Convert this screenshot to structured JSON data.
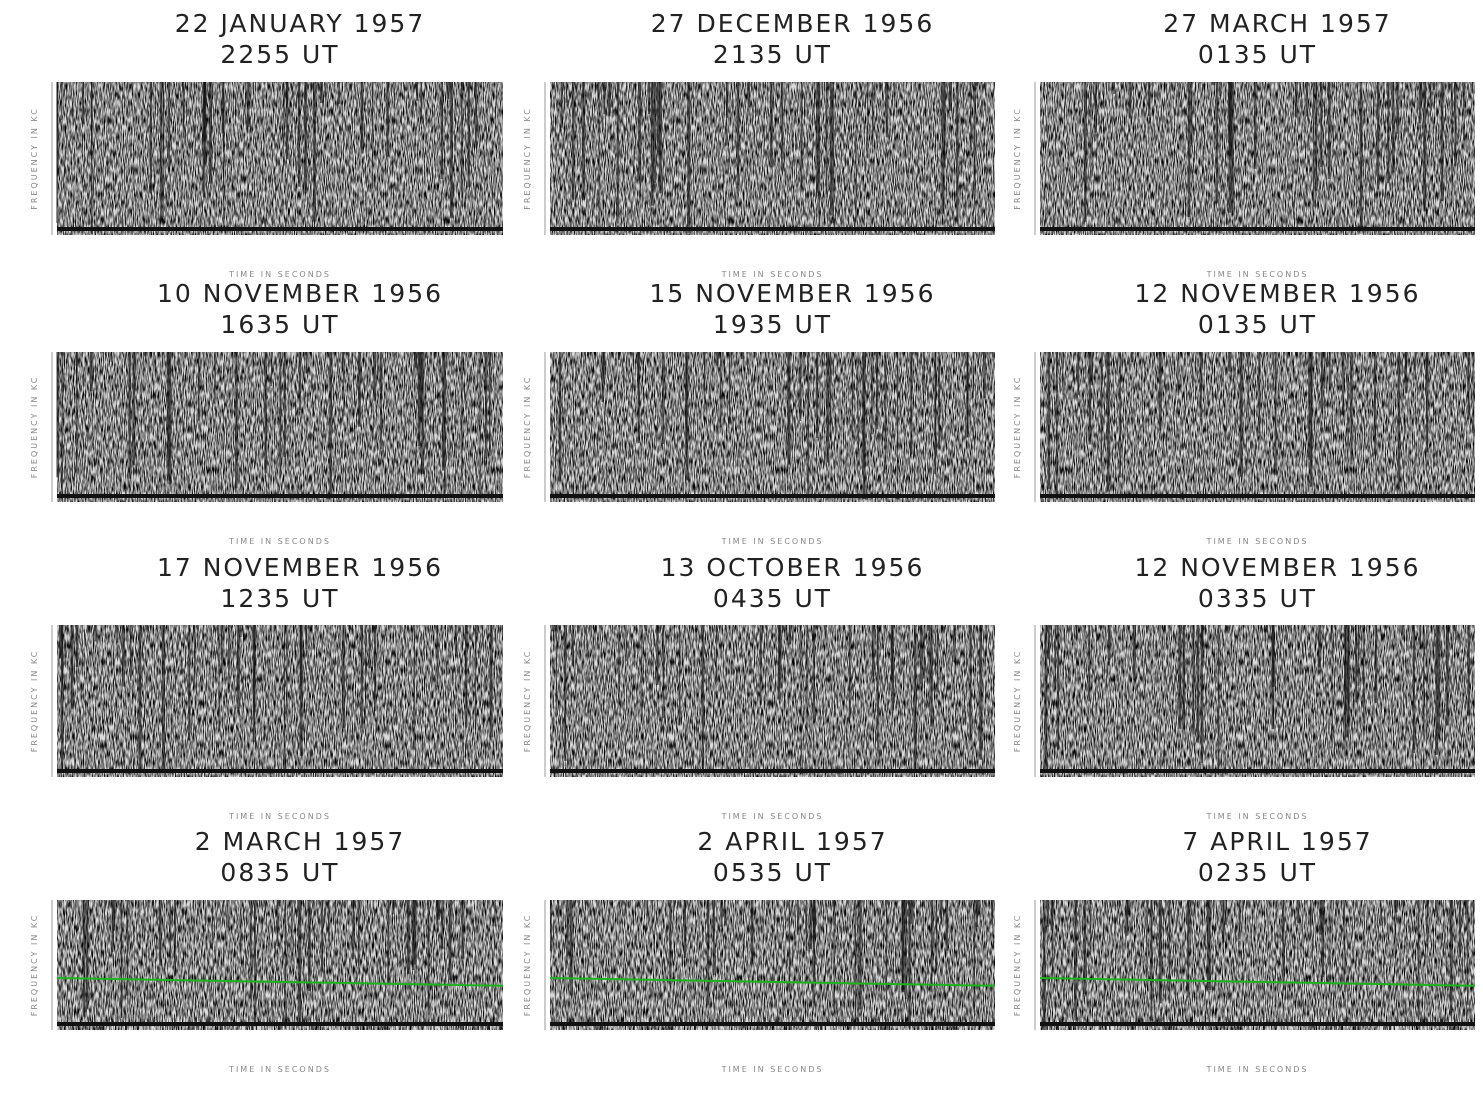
{
  "panels": [
    {
      "date": "22 JANUARY 1957",
      "time": "2255 UT",
      "x_label": "TIME IN SECONDS",
      "y_label": "FREQUENCY IN KC"
    },
    {
      "date": "27 DECEMBER 1956",
      "time": "2135 UT",
      "x_label": "TIME IN SECONDS",
      "y_label": "FREQUENCY IN KC"
    },
    {
      "date": "27 MARCH 1957",
      "time": "0135 UT",
      "x_label": "TIME IN SECONDS",
      "y_label": "FREQUENCY IN KC"
    },
    {
      "date": "10 NOVEMBER 1956",
      "time": "1635 UT",
      "x_label": "TIME IN SECONDS",
      "y_label": "FREQUENCY IN KC"
    },
    {
      "date": "15 NOVEMBER 1956",
      "time": "1935 UT",
      "x_label": "TIME IN SECONDS",
      "y_label": "FREQUENCY IN KC"
    },
    {
      "date": "12 NOVEMBER 1956",
      "time": "0135 UT",
      "x_label": "TIME IN SECONDS",
      "y_label": "FREQUENCY IN KC"
    },
    {
      "date": "17 NOVEMBER 1956",
      "time": "1235 UT",
      "x_label": "TIME IN SECONDS",
      "y_label": "FREQUENCY IN KC"
    },
    {
      "date": "13 OCTOBER 1956",
      "time": "0435 UT",
      "x_label": "TIME IN SECONDS",
      "y_label": "FREQUENCY IN KC"
    },
    {
      "date": "12 NOVEMBER 1956",
      "time": "0335 UT",
      "x_label": "TIME IN SECONDS",
      "y_label": "FREQUENCY IN KC"
    },
    {
      "date": "2 MARCH 1957",
      "time": "0835 UT",
      "x_label": "TIME IN SECONDS",
      "y_label": "FREQUENCY IN KC"
    },
    {
      "date": "2 APRIL 1957",
      "time": "0535 UT",
      "x_label": "TIME IN SECONDS",
      "y_label": "FREQUENCY IN KC"
    },
    {
      "date": "7 APRIL 1957",
      "time": "0235 UT",
      "x_label": "TIME IN SECONDS",
      "y_label": "FREQUENCY IN KC"
    }
  ]
}
